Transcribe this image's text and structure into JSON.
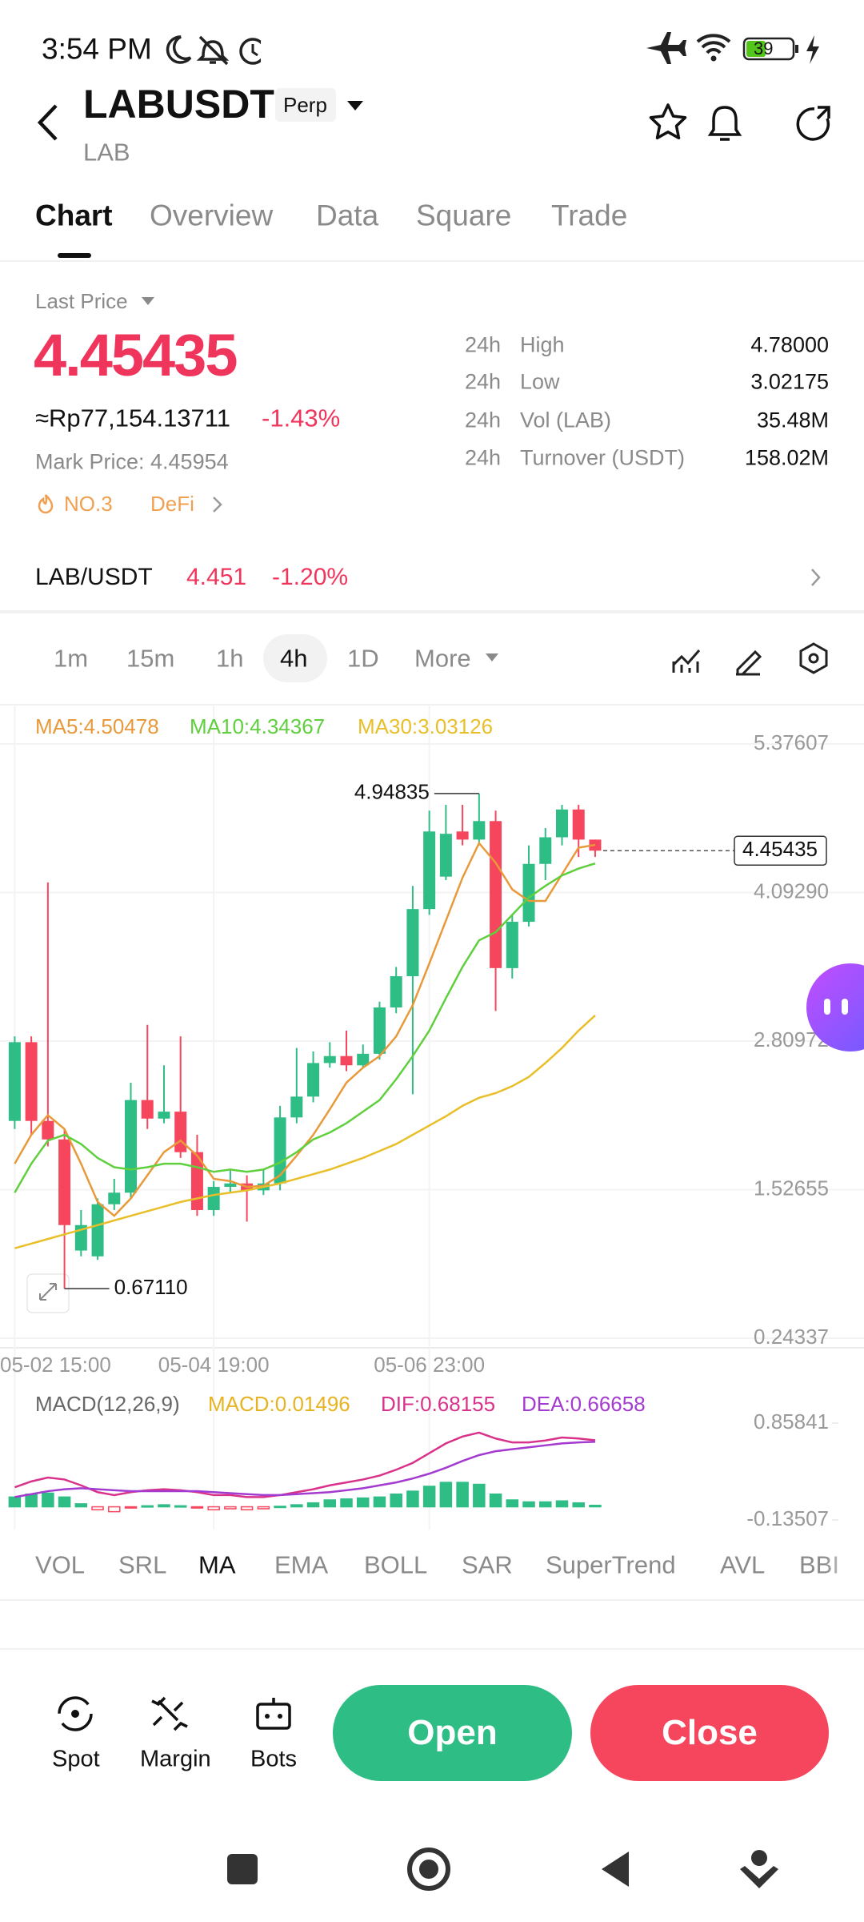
{
  "status_bar": {
    "time": "3:54 PM",
    "battery": "39"
  },
  "header": {
    "symbol": "LABUSDT",
    "badge": "Perp",
    "base": "LAB"
  },
  "tabs": [
    "Chart",
    "Overview",
    "Data",
    "Square",
    "Trade"
  ],
  "price_info": {
    "label": "Last Price",
    "last_price": "4.45435",
    "fiat": "≈Rp77,154.13711",
    "change": "-1.43%",
    "mark_price": "Mark Price: 4.45954",
    "rank": "NO.3",
    "sector": "DeFi",
    "stats": [
      {
        "period": "24h",
        "name": "High",
        "value": "4.78000"
      },
      {
        "period": "24h",
        "name": "Low",
        "value": "3.02175"
      },
      {
        "period": "24h",
        "name": "Vol (LAB)",
        "value": "35.48M"
      },
      {
        "period": "24h",
        "name": "Turnover (USDT)",
        "value": "158.02M"
      }
    ]
  },
  "spot_pair": {
    "name": "LAB/USDT",
    "price": "4.451",
    "change": "-1.20%"
  },
  "intervals": [
    "1m",
    "15m",
    "1h",
    "4h",
    "1D",
    "More"
  ],
  "chart_data": [
    {
      "type": "candlestick",
      "categories": [
        "05-02 15:00",
        null,
        null,
        null,
        null,
        null,
        null,
        null,
        null,
        null,
        null,
        null,
        "05-04 19:00",
        null,
        null,
        null,
        null,
        null,
        null,
        null,
        null,
        null,
        null,
        null,
        null,
        "05-06 23:00",
        null,
        null,
        null,
        null,
        null,
        null,
        null,
        null,
        null,
        null
      ],
      "candles": {
        "open": [
          2.12,
          2.8,
          2.12,
          1.96,
          1.0,
          0.95,
          1.4,
          1.5,
          2.3,
          2.14,
          2.2,
          1.85,
          1.35,
          1.55,
          1.58,
          1.52,
          1.58,
          2.15,
          2.33,
          2.62,
          2.68,
          2.6,
          2.7,
          3.1,
          3.37,
          3.95,
          4.23,
          4.62,
          4.55,
          4.71,
          3.44,
          3.84,
          4.34,
          4.57,
          4.81,
          4.55
        ],
        "high": [
          2.85,
          2.85,
          4.18,
          2.05,
          1.35,
          1.45,
          1.62,
          2.45,
          2.95,
          2.6,
          2.85,
          2.0,
          1.6,
          1.7,
          1.65,
          1.7,
          2.25,
          2.75,
          2.72,
          2.8,
          2.9,
          2.78,
          3.15,
          3.45,
          4.15,
          4.8,
          4.85,
          4.85,
          4.94835,
          4.8,
          3.9,
          4.5,
          4.65,
          4.85,
          4.85,
          4.55
        ],
        "low": [
          2.05,
          2.0,
          1.9,
          0.6711,
          0.95,
          0.92,
          1.35,
          1.45,
          2.05,
          2.1,
          1.8,
          1.3,
          1.3,
          1.5,
          1.25,
          1.48,
          1.52,
          2.1,
          2.28,
          2.58,
          2.55,
          2.58,
          2.65,
          3.05,
          2.35,
          3.9,
          4.2,
          4.5,
          4.5,
          3.07,
          3.35,
          3.8,
          4.2,
          4.5,
          4.4,
          4.4
        ],
        "close": [
          2.8,
          2.12,
          1.96,
          1.22,
          1.22,
          1.4,
          1.5,
          2.3,
          2.14,
          2.2,
          1.85,
          1.35,
          1.55,
          1.58,
          1.52,
          1.58,
          2.15,
          2.33,
          2.62,
          2.68,
          2.6,
          2.7,
          3.1,
          3.37,
          3.95,
          4.62,
          4.6,
          4.55,
          4.71,
          3.44,
          3.84,
          4.34,
          4.57,
          4.81,
          4.55,
          4.45435
        ]
      },
      "up_color": "#2ebd85",
      "down_color": "#f6465d",
      "series": [
        {
          "name": "MA5:4.50478",
          "color": "#e8993a",
          "values": [
            1.75,
            2.0,
            2.17,
            2.05,
            1.75,
            1.42,
            1.3,
            1.45,
            1.65,
            1.85,
            1.95,
            1.82,
            1.62,
            1.6,
            1.55,
            1.56,
            1.65,
            1.82,
            2.0,
            2.22,
            2.45,
            2.58,
            2.68,
            2.85,
            3.12,
            3.48,
            3.85,
            4.22,
            4.52,
            4.35,
            4.12,
            4.02,
            4.02,
            4.25,
            4.48,
            4.50478
          ]
        },
        {
          "name": "MA10:4.34367",
          "color": "#5fcf3e",
          "values": [
            1.5,
            1.75,
            1.95,
            2.0,
            1.92,
            1.8,
            1.72,
            1.7,
            1.72,
            1.75,
            1.75,
            1.72,
            1.68,
            1.7,
            1.68,
            1.7,
            1.76,
            1.85,
            1.96,
            2.02,
            2.1,
            2.2,
            2.3,
            2.48,
            2.68,
            2.9,
            3.18,
            3.45,
            3.68,
            3.75,
            3.9,
            4.05,
            4.15,
            4.24,
            4.3,
            4.34367
          ]
        },
        {
          "name": "MA30:3.03126",
          "color": "#e8bf28",
          "values": [
            1.02,
            1.06,
            1.1,
            1.14,
            1.18,
            1.22,
            1.26,
            1.3,
            1.34,
            1.38,
            1.42,
            1.45,
            1.48,
            1.5,
            1.52,
            1.55,
            1.58,
            1.62,
            1.66,
            1.7,
            1.75,
            1.8,
            1.86,
            1.92,
            2.0,
            2.08,
            2.16,
            2.25,
            2.32,
            2.36,
            2.42,
            2.5,
            2.62,
            2.75,
            2.9,
            3.03126
          ]
        }
      ],
      "ylim": [
        0.16,
        5.715
      ],
      "yticks": [
        {
          "value": 5.37607,
          "label": "5.37607"
        },
        {
          "value": 4.0929,
          "label": "4.09290"
        },
        {
          "value": 2.80972,
          "label": "2.80972"
        },
        {
          "value": 1.52655,
          "label": "1.52655"
        },
        {
          "value": 0.24337,
          "label": "0.24337"
        }
      ],
      "grid": true,
      "annotations": {
        "high": "4.94835",
        "low": "0.67110",
        "last": "4.45435"
      }
    },
    {
      "type": "macd",
      "title": "MACD(12,26,9)",
      "up_color": "#2ebd85",
      "down_color": "#f6465d",
      "series": [
        {
          "name": "MACD:0.01496",
          "color": "#e6b422",
          "values": [
            0.1,
            0.13,
            0.14,
            0.1,
            0.03,
            -0.03,
            -0.05,
            -0.01,
            0.01,
            0.02,
            0.01,
            -0.01,
            -0.03,
            -0.02,
            -0.03,
            -0.02,
            0.005,
            0.02,
            0.04,
            0.07,
            0.08,
            0.09,
            0.1,
            0.13,
            0.16,
            0.21,
            0.25,
            0.25,
            0.23,
            0.13,
            0.07,
            0.05,
            0.05,
            0.06,
            0.04,
            0.01496
          ]
        },
        {
          "name": "DIF:0.68155",
          "color": "#d9328a",
          "values": [
            0.2,
            0.26,
            0.3,
            0.28,
            0.22,
            0.15,
            0.12,
            0.15,
            0.17,
            0.18,
            0.17,
            0.15,
            0.12,
            0.12,
            0.1,
            0.1,
            0.12,
            0.15,
            0.18,
            0.22,
            0.25,
            0.28,
            0.32,
            0.38,
            0.45,
            0.55,
            0.65,
            0.72,
            0.76,
            0.7,
            0.66,
            0.66,
            0.68,
            0.71,
            0.7,
            0.68155
          ]
        },
        {
          "name": "DEA:0.66658",
          "color": "#a43bd1",
          "values": [
            0.1,
            0.13,
            0.16,
            0.18,
            0.19,
            0.18,
            0.17,
            0.16,
            0.16,
            0.16,
            0.16,
            0.16,
            0.15,
            0.14,
            0.13,
            0.12,
            0.12,
            0.13,
            0.14,
            0.15,
            0.17,
            0.19,
            0.22,
            0.25,
            0.29,
            0.34,
            0.4,
            0.47,
            0.53,
            0.57,
            0.59,
            0.61,
            0.63,
            0.65,
            0.66,
            0.66658
          ]
        }
      ],
      "ylim": [
        -0.1515,
        1.162
      ],
      "yticks": [
        {
          "value": 0.85841,
          "label": "0.85841"
        },
        {
          "value": -0.13507,
          "label": "-0.13507"
        }
      ]
    }
  ],
  "indicators": [
    "VOL",
    "SRL",
    "MA",
    "EMA",
    "BOLL",
    "SAR",
    "SuperTrend",
    "AVL",
    "BBI"
  ],
  "actions": [
    "Spot",
    "Margin",
    "Bots"
  ],
  "buttons": {
    "open": "Open",
    "close": "Close"
  }
}
